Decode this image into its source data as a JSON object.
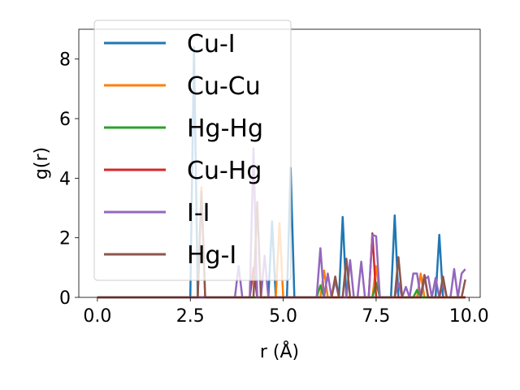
{
  "chart_data": {
    "type": "line",
    "xlabel": "r (Å)",
    "ylabel": "g(r)",
    "xlim": [
      -0.5,
      10.3
    ],
    "ylim": [
      0,
      9
    ],
    "xticks": [
      {
        "value": 0.0,
        "label": "0.0"
      },
      {
        "value": 2.5,
        "label": "2.5"
      },
      {
        "value": 5.0,
        "label": "5.0"
      },
      {
        "value": 7.5,
        "label": "7.5"
      },
      {
        "value": 10.0,
        "label": "10.0"
      }
    ],
    "yticks": [
      {
        "value": 0,
        "label": "0"
      },
      {
        "value": 2,
        "label": "2"
      },
      {
        "value": 4,
        "label": "4"
      },
      {
        "value": 6,
        "label": "6"
      },
      {
        "value": 8,
        "label": "8"
      }
    ],
    "legend_position": "upper-left",
    "grid": false,
    "series": [
      {
        "name": "Cu-I",
        "color": "#1f77b4",
        "x": [
          0,
          2.5,
          2.6,
          2.7,
          4.6,
          4.7,
          4.8,
          5.1,
          5.2,
          5.3,
          6.5,
          6.6,
          6.7,
          7.9,
          8.0,
          8.1,
          9.1,
          9.2,
          9.3,
          9.9
        ],
        "y": [
          0,
          0,
          8.4,
          0,
          0,
          2.55,
          0,
          0,
          4.35,
          0,
          0,
          2.7,
          0,
          0,
          2.75,
          0,
          0,
          2.1,
          0,
          0
        ]
      },
      {
        "name": "Cu-Cu",
        "color": "#ff7f0e",
        "x": [
          0,
          2.7,
          2.8,
          2.9,
          4.8,
          4.9,
          5.0,
          6.0,
          6.1,
          6.2,
          7.4,
          7.5,
          7.6,
          8.6,
          8.7,
          8.8,
          9.9
        ],
        "y": [
          0,
          0,
          3.7,
          0,
          0,
          2.5,
          0,
          0,
          0.9,
          0,
          0,
          1.05,
          0,
          0,
          0.8,
          0,
          0
        ]
      },
      {
        "name": "Hg-Hg",
        "color": "#2ca02c",
        "x": [
          0,
          5.9,
          6.0,
          6.1,
          7.4,
          7.5,
          7.6,
          8.5,
          8.6,
          8.7,
          9.9
        ],
        "y": [
          0,
          0,
          0.4,
          0,
          0,
          0.5,
          0,
          0,
          0.25,
          0,
          0
        ]
      },
      {
        "name": "Cu-Hg",
        "color": "#d62728",
        "x": [
          0,
          4.1,
          4.2,
          4.3,
          7.3,
          7.4,
          7.5,
          8.7,
          8.8,
          8.9,
          9.9
        ],
        "y": [
          0,
          0,
          1.0,
          0,
          0,
          2.15,
          0,
          0,
          0.75,
          0,
          0
        ]
      },
      {
        "name": "I-I",
        "color": "#9467bd",
        "x": [
          0,
          3.7,
          3.8,
          3.9,
          4.1,
          4.2,
          4.3,
          4.4,
          4.5,
          4.6,
          5.9,
          6.0,
          6.1,
          6.2,
          6.3,
          6.4,
          6.5,
          6.7,
          6.8,
          6.9,
          7.0,
          7.1,
          7.2,
          7.3,
          7.4,
          7.5,
          7.6,
          7.7,
          8.0,
          8.1,
          8.2,
          8.3,
          8.4,
          8.5,
          8.6,
          8.7,
          8.8,
          8.9,
          9.0,
          9.1,
          9.2,
          9.3,
          9.4,
          9.5,
          9.6,
          9.7,
          9.8,
          9.9
        ],
        "y": [
          0,
          0,
          1.05,
          0,
          0,
          5.0,
          0,
          0,
          1.4,
          0,
          0,
          1.65,
          0,
          0.8,
          0,
          0.55,
          0,
          0,
          1.25,
          0,
          0,
          1.2,
          0,
          0,
          2.1,
          2.05,
          0,
          0,
          0,
          0.5,
          0,
          0.35,
          0,
          0.8,
          0.8,
          0,
          0.6,
          0.7,
          0,
          0.65,
          0,
          0.5,
          0,
          0,
          0.95,
          0,
          0.8,
          0.95
        ]
      },
      {
        "name": "Hg-I",
        "color": "#8c564b",
        "x": [
          0,
          2.7,
          2.8,
          2.9,
          4.2,
          4.3,
          4.4,
          6.3,
          6.4,
          6.5,
          6.6,
          6.7,
          6.8,
          7.9,
          8.0,
          8.1,
          8.2,
          8.7,
          8.8,
          8.9,
          9.2,
          9.3,
          9.4,
          9.8,
          9.9
        ],
        "y": [
          0,
          0,
          3.55,
          0,
          0,
          3.2,
          0,
          0,
          0.7,
          0,
          0,
          1.3,
          0,
          0,
          0,
          1.35,
          0,
          0,
          0.75,
          0,
          0,
          0.7,
          0,
          0,
          0.6
        ]
      }
    ]
  }
}
